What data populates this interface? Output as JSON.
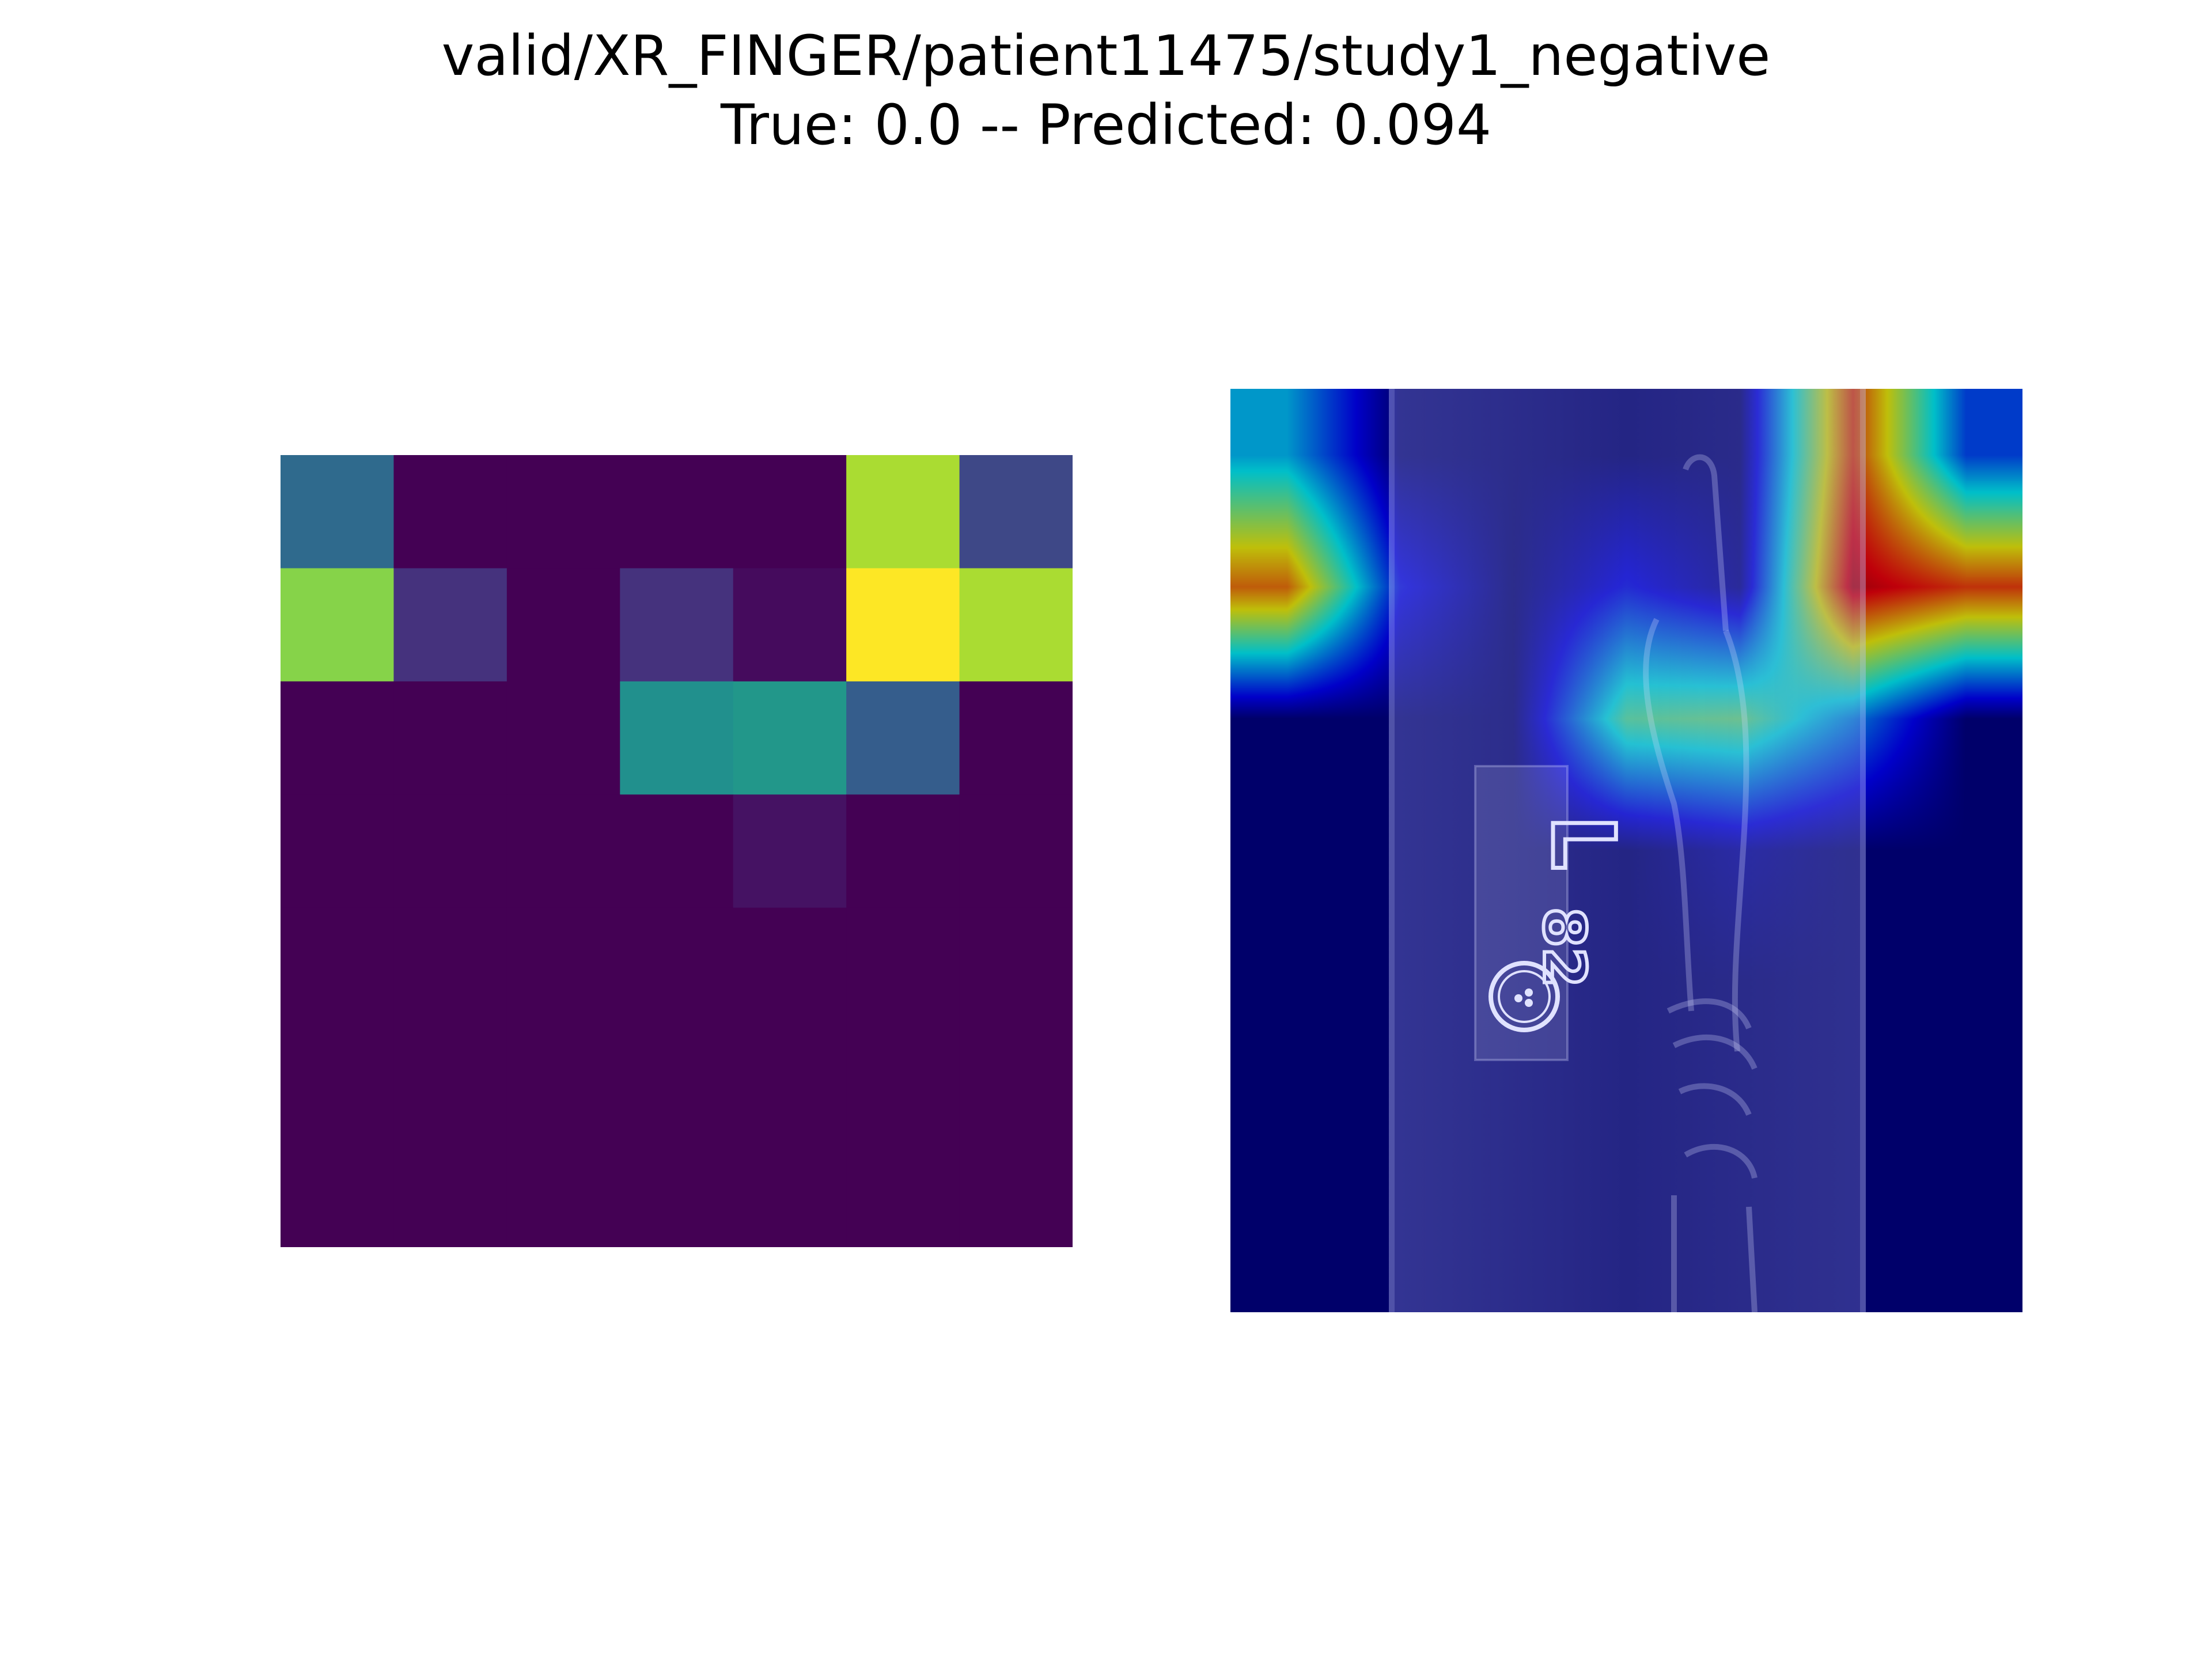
{
  "figure": {
    "title_line1": "valid/XR_FINGER/patient11475/study1_negative",
    "title_line2": "True: 0.0 -- Predicted: 0.094"
  },
  "chart_data": [
    {
      "type": "heatmap",
      "colormap": "viridis",
      "axes": "off",
      "rows": 7,
      "cols": 7,
      "values": [
        [
          0.35,
          0.0,
          0.0,
          0.0,
          0.0,
          0.88,
          0.22
        ],
        [
          0.82,
          0.15,
          0.0,
          0.15,
          0.03,
          1.0,
          0.88
        ],
        [
          0.0,
          0.0,
          0.0,
          0.5,
          0.53,
          0.3,
          0.0
        ],
        [
          0.0,
          0.0,
          0.0,
          0.0,
          0.05,
          0.0,
          0.0
        ],
        [
          0.0,
          0.0,
          0.0,
          0.0,
          0.0,
          0.0,
          0.0
        ],
        [
          0.0,
          0.0,
          0.0,
          0.0,
          0.0,
          0.0,
          0.0
        ],
        [
          0.0,
          0.0,
          0.0,
          0.0,
          0.0,
          0.0,
          0.0
        ]
      ]
    },
    {
      "type": "heatmap",
      "colormap": "jet",
      "overlay": "x-ray image",
      "axes": "off",
      "marker_text": [
        "L",
        "82"
      ]
    }
  ]
}
